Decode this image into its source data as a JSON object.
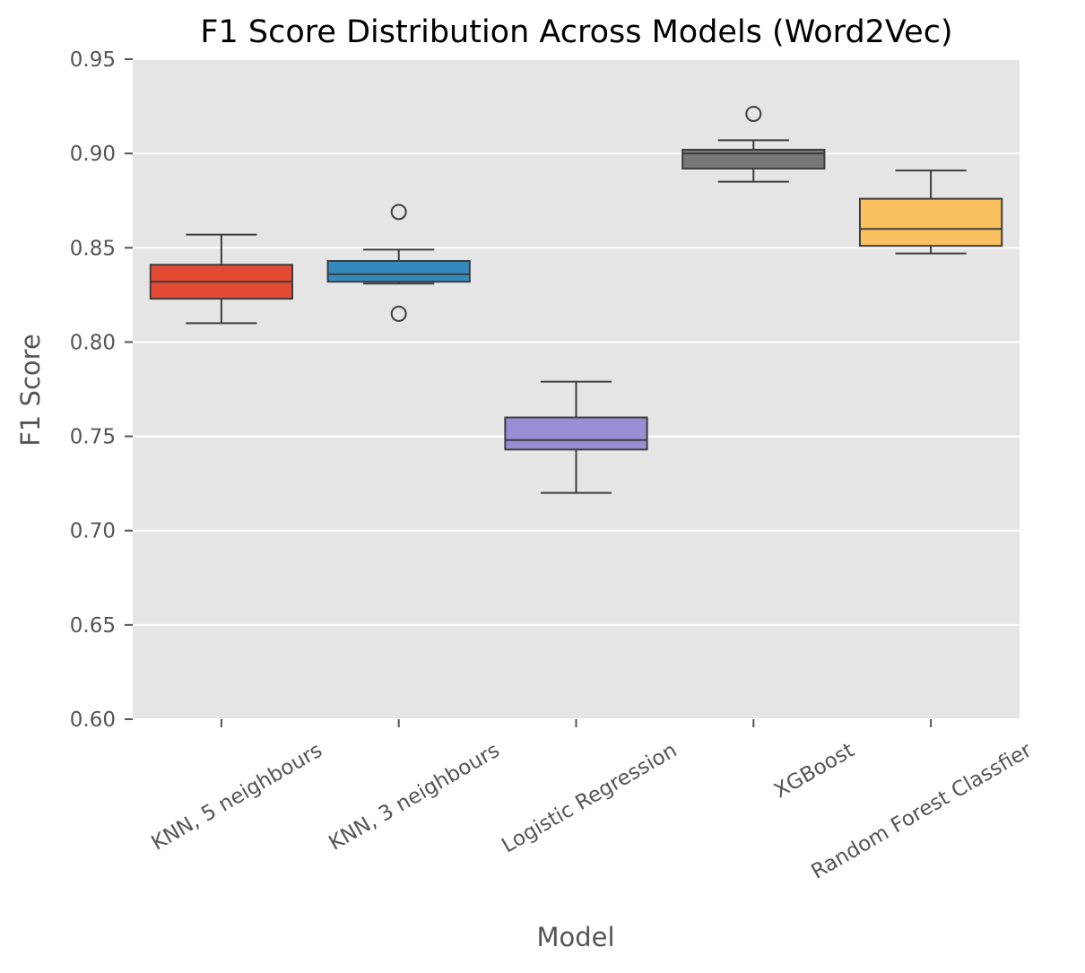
{
  "chart_data": {
    "type": "boxplot",
    "title": "F1 Score Distribution Across Models (Word2Vec)",
    "xlabel": "Model",
    "ylabel": "F1 Score",
    "ylim": [
      0.6,
      0.95
    ],
    "yticks": [
      "0.60",
      "0.65",
      "0.70",
      "0.75",
      "0.80",
      "0.85",
      "0.90",
      "0.95"
    ],
    "grid": true,
    "legend": "none",
    "categories": [
      "KNN, 5 neighbours",
      "KNN, 3 neighbours",
      "Logistic Regression",
      "XGBoost",
      "Random Forest Classfier"
    ],
    "boxes": [
      {
        "category": "KNN, 5 neighbours",
        "whisker_low": 0.81,
        "q1": 0.823,
        "median": 0.832,
        "q3": 0.841,
        "whisker_high": 0.857,
        "outliers": [],
        "color": "#E24A33"
      },
      {
        "category": "KNN, 3 neighbours",
        "whisker_low": 0.831,
        "q1": 0.832,
        "median": 0.836,
        "q3": 0.843,
        "whisker_high": 0.849,
        "outliers": [
          0.869,
          0.815
        ],
        "color": "#348ABD"
      },
      {
        "category": "Logistic Regression",
        "whisker_low": 0.72,
        "q1": 0.743,
        "median": 0.748,
        "q3": 0.76,
        "whisker_high": 0.779,
        "outliers": [],
        "color": "#988ED5"
      },
      {
        "category": "XGBoost",
        "whisker_low": 0.885,
        "q1": 0.892,
        "median": 0.9,
        "q3": 0.902,
        "whisker_high": 0.907,
        "outliers": [
          0.921
        ],
        "color": "#777777"
      },
      {
        "category": "Random Forest Classfier",
        "whisker_low": 0.847,
        "q1": 0.851,
        "median": 0.86,
        "q3": 0.876,
        "whisker_high": 0.891,
        "outliers": [],
        "color": "#FBC15E"
      }
    ],
    "style": {
      "plot_background": "#E5E5E5",
      "grid_color": "#FFFFFF",
      "line_color": "#3D3D3D"
    }
  }
}
